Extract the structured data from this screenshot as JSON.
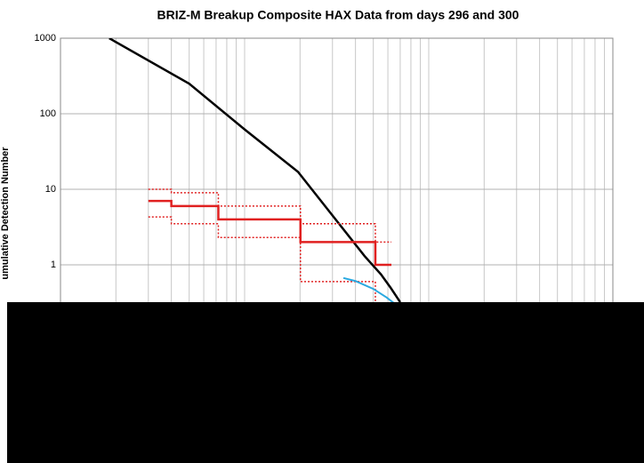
{
  "chart_data": {
    "type": "line",
    "title": "BRIZ-M Breakup Composite HAX Data from days 296 and 300",
    "y_label": "umulative Detection Number",
    "xscale": "log",
    "yscale": "log",
    "xlim": [
      1,
      1000
    ],
    "ylim": [
      0.01,
      1000
    ],
    "yticks": [
      1,
      10,
      100,
      1000
    ],
    "grid": true,
    "series": [
      {
        "color": "#000000",
        "width": 2.5,
        "dash": false,
        "step": false,
        "x": [
          1.84,
          5,
          10,
          19.5,
          44.9,
          55,
          62,
          70
        ],
        "values": [
          1000,
          250,
          62,
          17,
          1.3,
          0.75,
          0.5,
          0.32
        ]
      },
      {
        "color": "#e02020",
        "width": 2.5,
        "dash": false,
        "step": true,
        "x": [
          3,
          4,
          7.2,
          20.1,
          51.3,
          62.7
        ],
        "values": [
          7,
          6,
          4,
          2,
          1,
          1
        ]
      },
      {
        "color": "#e02020",
        "width": 1.5,
        "dash": true,
        "step": true,
        "x": [
          3,
          4,
          7.2,
          20.1,
          51.3,
          62.7
        ],
        "values": [
          10,
          9,
          6,
          3.5,
          2,
          2
        ]
      },
      {
        "color": "#e02020",
        "width": 1.5,
        "dash": true,
        "step": true,
        "x": [
          3,
          4,
          7.2,
          20.1,
          51.3,
          55
        ],
        "values": [
          4.3,
          3.5,
          2.3,
          0.6,
          0.3,
          0.3
        ]
      },
      {
        "color": "#29a8e0",
        "width": 2,
        "dash": false,
        "step": false,
        "x": [
          34.4,
          40,
          50,
          59,
          66
        ],
        "values": [
          0.67,
          0.61,
          0.48,
          0.37,
          0.3
        ]
      }
    ]
  }
}
